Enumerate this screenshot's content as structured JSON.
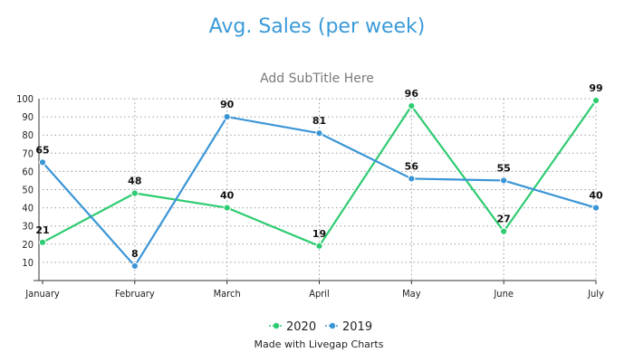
{
  "chart_data": {
    "type": "line",
    "title": "Avg. Sales (per week)",
    "subtitle": "Add SubTitle Here",
    "categories": [
      "January",
      "February",
      "March",
      "April",
      "May",
      "June",
      "July"
    ],
    "series": [
      {
        "name": "2020",
        "color": "#2ecc71",
        "values": [
          21,
          48,
          40,
          19,
          96,
          27,
          99
        ]
      },
      {
        "name": "2019",
        "color": "#3a95d6",
        "values": [
          65,
          8,
          90,
          81,
          56,
          55,
          40
        ]
      }
    ],
    "y_ticks": [
      10,
      20,
      30,
      40,
      50,
      60,
      70,
      80,
      90,
      100
    ],
    "ylim": [
      0,
      100
    ],
    "grid": true,
    "legend_position": "bottom-center"
  },
  "footer": {
    "credit": "Made with Livegap Charts"
  }
}
